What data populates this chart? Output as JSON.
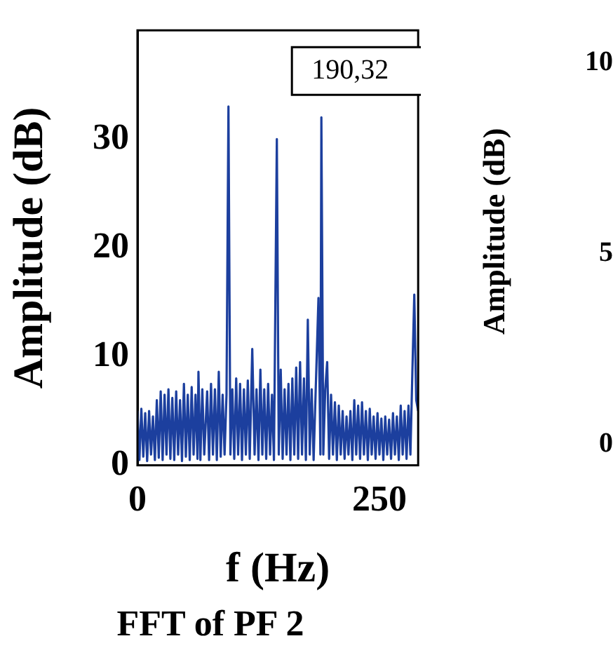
{
  "chart_data": [
    {
      "type": "line",
      "title": "FFT of PF 2",
      "xlabel": "f (Hz)",
      "ylabel": "Amplitude (dB)",
      "xlim": [
        0,
        290
      ],
      "xticks": [
        0,
        250
      ],
      "ylim": [
        0,
        40
      ],
      "yticks": [
        0,
        10,
        20,
        30
      ],
      "grid": false,
      "legend": false,
      "marker": "none",
      "line_style": "solid",
      "annotations": [
        {
          "text": "190,32",
          "x": 190,
          "y": 32
        }
      ],
      "series": [
        {
          "color": "#1c3f9e",
          "x": [
            0,
            2,
            4,
            6,
            8,
            10,
            12,
            14,
            16,
            18,
            20,
            22,
            24,
            26,
            28,
            30,
            32,
            34,
            36,
            38,
            40,
            42,
            44,
            46,
            48,
            50,
            52,
            54,
            56,
            58,
            60,
            62,
            63,
            65,
            67,
            69,
            72,
            74,
            76,
            78,
            80,
            82,
            84,
            86,
            88,
            90,
            92,
            94,
            96,
            98,
            100,
            102,
            104,
            106,
            108,
            110,
            112,
            114,
            116,
            118.6,
            121,
            123,
            125,
            127,
            129,
            131,
            133,
            135,
            137,
            139,
            141,
            144,
            146,
            148,
            150,
            152,
            154,
            156,
            158,
            160,
            162,
            164,
            166,
            168,
            170,
            172,
            174,
            176,
            178,
            180,
            182,
            184,
            187,
            189,
            190,
            192,
            194,
            196,
            198,
            200,
            202,
            204,
            206,
            208,
            210,
            212,
            214,
            216,
            218,
            220,
            222,
            224,
            226,
            228,
            230,
            232,
            234,
            236,
            238,
            240,
            242,
            244,
            246,
            248,
            250,
            252,
            254,
            256,
            258,
            260,
            262,
            264,
            266,
            268,
            270,
            272,
            274,
            276,
            278,
            280,
            282,
            284,
            286,
            288,
            290
          ],
          "values": [
            5,
            0.5,
            5.2,
            0.8,
            4.8,
            0.4,
            5,
            1,
            4.5,
            0.5,
            6,
            0.7,
            6.8,
            0.5,
            6.5,
            1,
            7,
            0.6,
            6.2,
            0.5,
            6.8,
            1,
            6,
            0.4,
            7.5,
            0.8,
            6.5,
            0.5,
            7.2,
            1,
            6.5,
            0.6,
            8.6,
            0.5,
            7,
            1,
            6.8,
            0.5,
            7.5,
            1,
            7,
            0.5,
            8.6,
            0.8,
            6.5,
            1,
            6.5,
            33,
            1,
            7,
            0.6,
            8,
            1,
            7.5,
            0.5,
            7,
            1,
            7.8,
            0.6,
            10.7,
            1,
            7,
            0.5,
            8.8,
            1,
            7,
            0.6,
            7.5,
            1,
            6.5,
            0.5,
            30,
            1,
            8.8,
            0.6,
            7,
            1,
            7.5,
            0.5,
            8,
            1,
            9,
            0.6,
            9.5,
            1,
            8,
            0.5,
            13.4,
            1,
            7,
            0.5,
            6.5,
            15.4,
            1,
            32,
            1,
            7,
            9.5,
            0.6,
            6.5,
            1,
            5.8,
            0.5,
            5.5,
            1,
            5,
            0.6,
            4.5,
            1,
            5,
            0.5,
            6,
            1,
            5.5,
            0.6,
            5.8,
            1,
            5,
            0.5,
            5.2,
            1,
            4.5,
            0.6,
            4.8,
            1,
            4.3,
            0.5,
            4.5,
            1,
            4.2,
            0.6,
            4.8,
            1,
            4.5,
            0.5,
            5.5,
            1,
            5,
            0.6,
            5.5,
            1,
            8.5,
            15.7,
            6,
            5
          ]
        }
      ]
    },
    {
      "type": "other",
      "ylabel": "Amplitude (dB)",
      "annotations": [
        "10",
        "5",
        "0"
      ]
    }
  ]
}
